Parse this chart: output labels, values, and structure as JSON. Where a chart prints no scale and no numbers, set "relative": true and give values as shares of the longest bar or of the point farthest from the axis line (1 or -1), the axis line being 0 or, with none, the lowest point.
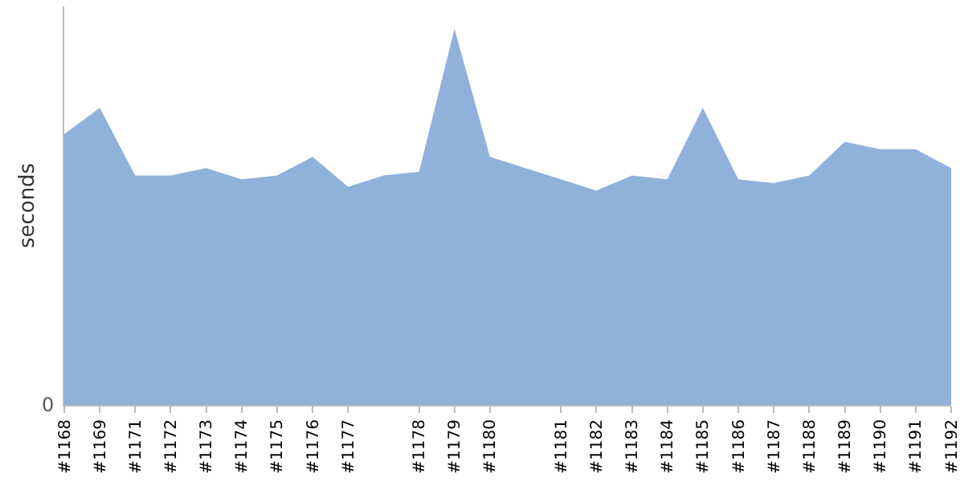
{
  "chart_data": {
    "type": "area",
    "relative": true,
    "ylabel": "seconds",
    "annotations": [
      "0"
    ],
    "categories": [
      "#1168",
      "#1169",
      "#1171",
      "#1172",
      "#1173",
      "#1174",
      "#1175",
      "#1176",
      "#1177",
      null,
      "#1178",
      "#1179",
      "#1180",
      null,
      "#1181",
      "#1182",
      "#1183",
      "#1184",
      "#1185",
      "#1186",
      "#1187",
      "#1188",
      "#1189",
      "#1190",
      "#1191",
      "#1192"
    ],
    "series": [
      {
        "color": "#8fb1da",
        "values": [
          0.72,
          0.79,
          0.61,
          0.61,
          0.63,
          0.6,
          0.61,
          0.66,
          0.58,
          0.61,
          0.62,
          1,
          0.66,
          0.63,
          0.6,
          0.57,
          0.61,
          0.6,
          0.79,
          0.6,
          0.59,
          0.61,
          0.7,
          0.68,
          0.68,
          0.63
        ]
      }
    ],
    "grid": false
  }
}
